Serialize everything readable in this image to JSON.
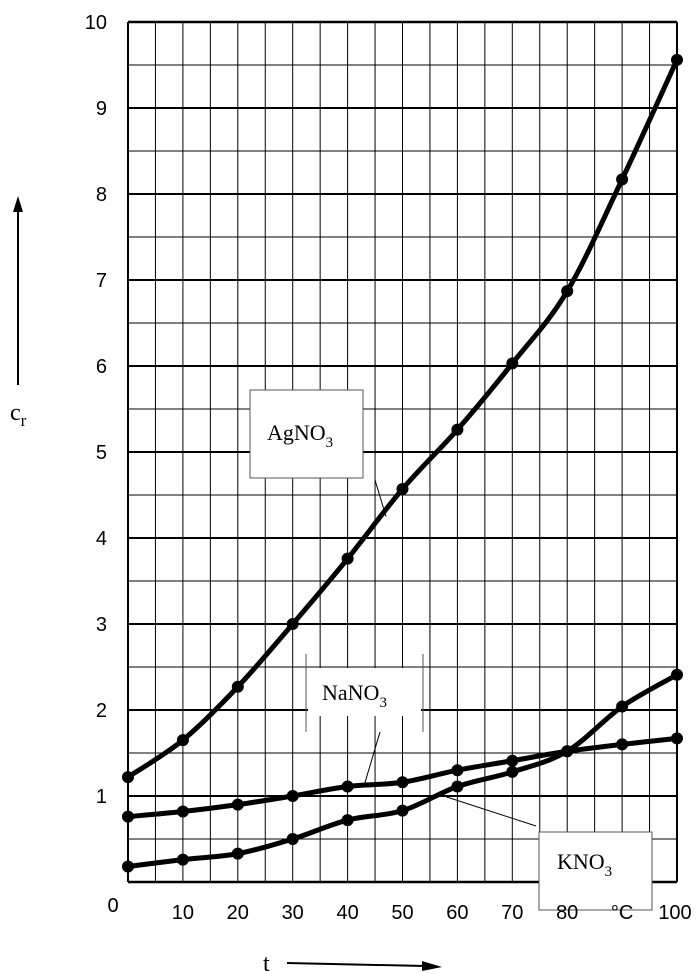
{
  "chart_data": {
    "type": "line",
    "title": "",
    "xlabel": "t",
    "ylabel": "c",
    "ylabel_subscript": "r",
    "x_unit": "°C",
    "xlim": [
      0,
      100
    ],
    "ylim": [
      0,
      10
    ],
    "grid": true,
    "x_tick_labels": [
      "0",
      "10",
      "20",
      "30",
      "40",
      "50",
      "60",
      "70",
      "80",
      "°C",
      "100"
    ],
    "y_tick_labels": [
      "1",
      "2",
      "3",
      "4",
      "5",
      "6",
      "7",
      "8",
      "9",
      "10"
    ],
    "x": [
      0,
      10,
      20,
      30,
      40,
      50,
      60,
      70,
      80,
      90,
      100
    ],
    "series": [
      {
        "name": "AgNO3",
        "label_main": "AgNO",
        "label_sub": "3",
        "values": [
          1.22,
          1.65,
          2.27,
          3.0,
          3.76,
          4.57,
          5.26,
          6.03,
          6.87,
          8.17,
          9.56
        ]
      },
      {
        "name": "NaNO3",
        "label_main": "NaNO",
        "label_sub": "3",
        "values": [
          0.76,
          0.82,
          0.9,
          1.0,
          1.11,
          1.16,
          1.3,
          1.41,
          1.52,
          1.6,
          1.67
        ]
      },
      {
        "name": "KNO3",
        "label_main": "KNO",
        "label_sub": "3",
        "values": [
          0.18,
          0.26,
          0.33,
          0.5,
          0.72,
          0.83,
          1.11,
          1.28,
          1.52,
          2.04,
          2.41
        ]
      }
    ],
    "colors": {
      "line": "#000000",
      "grid": "#000000",
      "background": "#ffffff"
    }
  }
}
